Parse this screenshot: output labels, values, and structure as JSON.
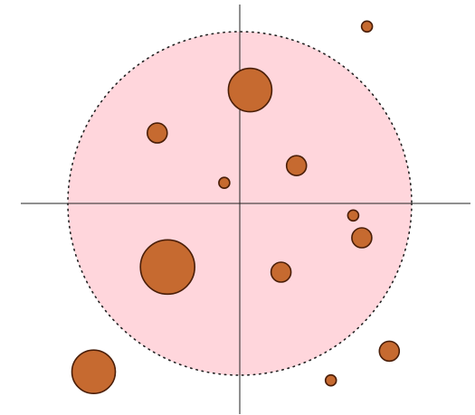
{
  "colors": {
    "background": "#ffffff",
    "region_fill": "#ffd6dc",
    "region_border": "#222222",
    "axis": "#222222",
    "point_fill": "#c66a30",
    "point_stroke": "#4a1e08"
  },
  "diagram": {
    "type": "scatter-bubble",
    "region": {
      "shape": "circle",
      "border": "dotted"
    },
    "axes": {
      "shown": true,
      "ticks": false,
      "labels": false
    },
    "points": [
      {
        "x": 0.74,
        "y": 1.03,
        "size": 1
      },
      {
        "x": 0.06,
        "y": 0.66,
        "size": 3
      },
      {
        "x": -0.48,
        "y": 0.41,
        "size": 2
      },
      {
        "x": 0.33,
        "y": 0.22,
        "size": 2
      },
      {
        "x": -0.09,
        "y": 0.12,
        "size": 1
      },
      {
        "x": 0.66,
        "y": -0.07,
        "size": 1
      },
      {
        "x": 0.71,
        "y": -0.2,
        "size": 2
      },
      {
        "x": -0.42,
        "y": -0.37,
        "size": 4
      },
      {
        "x": 0.24,
        "y": -0.4,
        "size": 2
      },
      {
        "x": 0.87,
        "y": -0.86,
        "size": 2
      },
      {
        "x": 0.53,
        "y": -1.03,
        "size": 1
      },
      {
        "x": -0.85,
        "y": -0.98,
        "size": 3
      }
    ]
  }
}
